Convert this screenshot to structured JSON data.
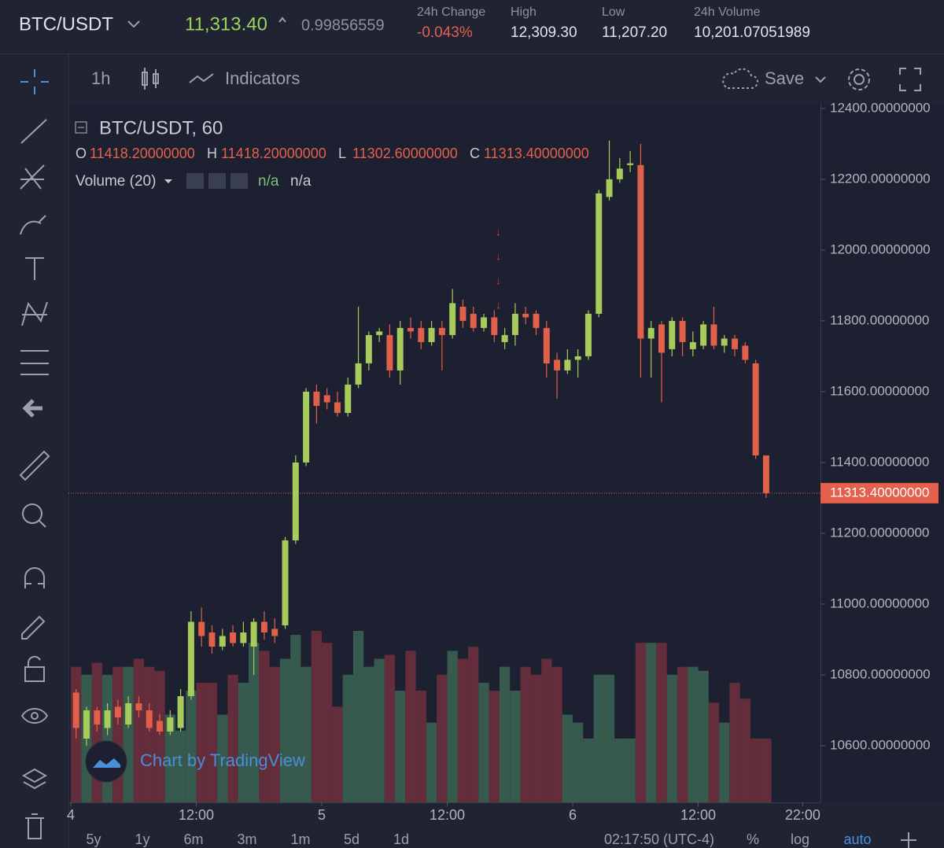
{
  "header": {
    "pair": "BTC/USDT",
    "last_price": "11,313.40",
    "ratio": "0.99856559",
    "stats": [
      {
        "label": "24h Change",
        "value": "-0.043%"
      },
      {
        "label": "High",
        "value": "12,309.30"
      },
      {
        "label": "Low",
        "value": "11,207.20"
      },
      {
        "label": "24h Volume",
        "value": "10,201.07051989"
      }
    ]
  },
  "toolbar": {
    "interval": "1h",
    "indicators": "Indicators",
    "save": "Save"
  },
  "chart_data": {
    "type": "candlestick",
    "title": "BTC/USDT, 60",
    "ohlc_legend": [
      {
        "key": "O",
        "value": "11418.20000000"
      },
      {
        "key": "H",
        "value": "11418.20000000"
      },
      {
        "key": "L",
        "value": "11302.60000000"
      },
      {
        "key": "C",
        "value": "11313.40000000"
      }
    ],
    "volume_title": "Volume (20)",
    "volume_values": [
      "n/a",
      "n/a"
    ],
    "watermark": "Chart by TradingView",
    "up_color": "#a7cc5b",
    "down_color": "#e0604a",
    "volume_up_color": "#3b6552",
    "volume_down_color": "#70303e",
    "x": [
      0.5,
      1.5,
      2.5,
      3.5,
      4.5,
      5.5,
      6.5,
      7.5,
      8.5,
      9.5,
      10.5,
      11.5,
      12.5,
      13.5,
      14.5,
      15.5,
      16.5,
      17.5,
      18.5,
      19.5,
      20.5,
      21.5,
      22.5,
      23.5,
      24.5,
      25.5,
      26.5,
      27.5,
      28.5,
      29.5,
      30.5,
      31.5,
      32.5,
      33.5,
      34.5,
      35.5,
      36.5,
      37.5,
      38.5,
      39.5,
      40.5,
      41.5,
      42.5,
      43.5,
      44.5,
      45.5,
      46.5,
      47.5,
      48.5,
      49.5,
      50.5,
      51.5,
      52.5,
      53.5,
      54.5,
      55.5,
      56.5,
      57.5,
      58.5,
      59.5,
      60.5,
      61.5,
      62.5,
      63.5,
      64.5,
      65.5,
      66.5
    ],
    "open": [
      10750,
      10620,
      10700,
      10650,
      10710,
      10660,
      10720,
      10700,
      10670,
      10640,
      10650,
      10740,
      10950,
      10920,
      10880,
      10920,
      10890,
      10880,
      10950,
      10930,
      10940,
      11180,
      11400,
      11600,
      11590,
      11570,
      11540,
      11620,
      11680,
      11760,
      11760,
      11660,
      11780,
      11780,
      11740,
      11780,
      11760,
      11840,
      11820,
      11780,
      11810,
      11740,
      11760,
      11820,
      11820,
      11780,
      11690,
      11660,
      11690,
      11700,
      11820,
      12150,
      12200,
      12240,
      12240,
      11750,
      11790,
      11720,
      11800,
      11720,
      11730,
      11790,
      11730,
      11750,
      11730,
      11680,
      11420
    ],
    "high": [
      10760,
      10710,
      10710,
      10720,
      10730,
      10740,
      10740,
      10720,
      10690,
      10700,
      10760,
      10980,
      10990,
      10940,
      10930,
      10940,
      10950,
      10960,
      10980,
      10960,
      11190,
      11420,
      11610,
      11620,
      11610,
      11600,
      11640,
      11840,
      11770,
      11780,
      11790,
      11800,
      11810,
      11800,
      11800,
      11800,
      11890,
      11860,
      11840,
      11820,
      11830,
      11780,
      11850,
      11840,
      11830,
      11800,
      11710,
      11720,
      11720,
      11830,
      12170,
      12309.3,
      12260,
      12280,
      12300,
      11800,
      11800,
      11810,
      11810,
      11770,
      11800,
      11840,
      11760,
      11760,
      11740,
      11690,
      11420
    ],
    "low": [
      10620,
      10600,
      10640,
      10630,
      10660,
      10650,
      10680,
      10640,
      10630,
      10630,
      10640,
      10730,
      10880,
      10860,
      10870,
      10880,
      10880,
      10800,
      10900,
      10890,
      10930,
      11170,
      11390,
      11510,
      11550,
      11530,
      11530,
      11610,
      11660,
      11740,
      11640,
      11620,
      11750,
      11720,
      11730,
      11660,
      11750,
      11780,
      11770,
      11770,
      11740,
      11720,
      11730,
      11790,
      11760,
      11640,
      11580,
      11650,
      11640,
      11690,
      11810,
      12140,
      12190,
      12220,
      11640,
      11640,
      11570,
      11700,
      11700,
      11700,
      11720,
      11720,
      11710,
      11700,
      11680,
      11410,
      11300
    ],
    "close": [
      10650,
      10700,
      10660,
      10700,
      10680,
      10720,
      10700,
      10650,
      10640,
      10680,
      10740,
      10950,
      10910,
      10880,
      10910,
      10890,
      10920,
      10950,
      10920,
      10910,
      11180,
      11400,
      11600,
      11560,
      11570,
      11540,
      11620,
      11680,
      11760,
      11770,
      11660,
      11780,
      11770,
      11740,
      11780,
      11760,
      11850,
      11800,
      11780,
      11810,
      11760,
      11760,
      11820,
      11810,
      11780,
      11680,
      11660,
      11690,
      11700,
      11820,
      12160,
      12200,
      12230,
      12245,
      11750,
      11780,
      11710,
      11800,
      11740,
      11740,
      11790,
      11730,
      11750,
      11720,
      11690,
      11420,
      11313.4
    ],
    "volume": [
      170,
      160,
      175,
      160,
      170,
      170,
      180,
      170,
      165,
      110,
      90,
      140,
      150,
      150,
      110,
      160,
      150,
      200,
      190,
      170,
      180,
      210,
      170,
      215,
      200,
      120,
      160,
      215,
      170,
      180,
      185,
      140,
      190,
      140,
      100,
      160,
      190,
      180,
      195,
      150,
      140,
      170,
      140,
      170,
      160,
      180,
      170,
      110,
      100,
      80,
      160,
      160,
      80,
      80,
      200,
      200,
      200,
      160,
      170,
      170,
      165,
      125,
      100,
      150,
      130,
      80,
      80
    ],
    "xlim": [
      -0.23,
      71.7
    ],
    "xticks": [
      {
        "value": 0,
        "label": "4"
      },
      {
        "value": 12,
        "label": "12:00"
      },
      {
        "value": 24,
        "label": "5"
      },
      {
        "value": 36,
        "label": "12:00"
      },
      {
        "value": 48,
        "label": "6"
      },
      {
        "value": 60,
        "label": "12:00"
      },
      {
        "value": 70,
        "label": "22:00"
      }
    ],
    "ylim": [
      10440,
      12413
    ],
    "yticks": [
      {
        "value": 10600,
        "label": "10600.00000000"
      },
      {
        "value": 10800,
        "label": "10800.00000000"
      },
      {
        "value": 11000,
        "label": "11000.00000000"
      },
      {
        "value": 11200,
        "label": "11200.00000000"
      },
      {
        "value": 11400,
        "label": "11400.00000000"
      },
      {
        "value": 11600,
        "label": "11600.00000000"
      },
      {
        "value": 11800,
        "label": "11800.00000000"
      },
      {
        "value": 12000,
        "label": "12000.00000000"
      },
      {
        "value": 12200,
        "label": "12200.00000000"
      },
      {
        "value": 12400,
        "label": "12400.00000000"
      }
    ],
    "last_price": {
      "value": 11313.4,
      "label": "11313.40000000"
    }
  },
  "bottom_bar": {
    "ranges": [
      "5y",
      "1y",
      "6m",
      "3m",
      "1m",
      "5d",
      "1d"
    ],
    "clock": "02:17:50 (UTC-4)",
    "options": [
      "%",
      "log",
      "auto"
    ]
  }
}
